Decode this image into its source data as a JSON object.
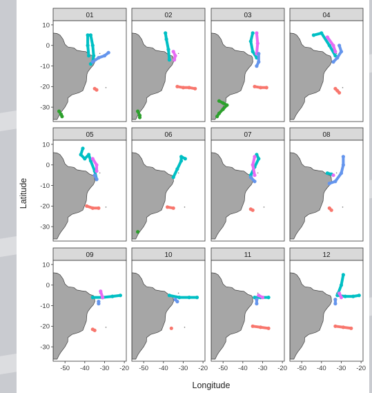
{
  "chart_data": {
    "type": "scatter",
    "facets": [
      "01",
      "02",
      "03",
      "04",
      "05",
      "06",
      "07",
      "08",
      "09",
      "10",
      "11",
      "12"
    ],
    "xlabel": "Longitude",
    "ylabel": "Latitude",
    "xlim": [
      -56,
      -19
    ],
    "ylim": [
      -37,
      12
    ],
    "x_ticks": [
      -50,
      -40,
      -30,
      -20
    ],
    "y_ticks": [
      10,
      0,
      -10,
      -20,
      -30
    ],
    "x_tick_labels": [
      "-50",
      "-40",
      "-30",
      "-20"
    ],
    "y_tick_labels": [
      "10",
      "0",
      "-10",
      "-20",
      "-30"
    ],
    "grid": false,
    "legend": "none",
    "colors": {
      "red": "#f8766d",
      "green": "#2ca02c",
      "cyan": "#00bfc4",
      "blue": "#6495ed",
      "magenta": "#e76bf3",
      "land": "#a6a6a6",
      "strip": "#d9d9d9"
    },
    "panels": [
      {
        "month": "01",
        "tracks": [
          {
            "color": "red",
            "points": [
              [
                -35,
                -21
              ],
              [
                -34,
                -21.6
              ]
            ]
          },
          {
            "color": "green",
            "points": [
              [
                -53,
                -32
              ],
              [
                -52,
                -33.5
              ],
              [
                -51.5,
                -34.5
              ]
            ]
          },
          {
            "color": "cyan",
            "points": [
              [
                -38,
                -5
              ],
              [
                -38.5,
                0
              ],
              [
                -38.5,
                5
              ],
              [
                -37,
                5
              ],
              [
                -36,
                0
              ],
              [
                -35.5,
                -5
              ],
              [
                -36,
                -8
              ],
              [
                -37,
                -9
              ]
            ]
          },
          {
            "color": "blue",
            "points": [
              [
                -36,
                -8
              ],
              [
                -33,
                -6
              ],
              [
                -30,
                -5
              ],
              [
                -28,
                -3.5
              ]
            ]
          }
        ]
      },
      {
        "month": "02",
        "tracks": [
          {
            "color": "red",
            "points": [
              [
                -33,
                -20
              ],
              [
                -30,
                -20.5
              ],
              [
                -27,
                -20.5
              ],
              [
                -24,
                -21
              ]
            ]
          },
          {
            "color": "green",
            "points": [
              [
                -53,
                -32
              ],
              [
                -52,
                -34
              ],
              [
                -52,
                -35
              ]
            ]
          },
          {
            "color": "cyan",
            "points": [
              [
                -39,
                6
              ],
              [
                -38.5,
                3
              ],
              [
                -37.5,
                -2
              ],
              [
                -37,
                -7
              ]
            ]
          },
          {
            "color": "magenta",
            "points": [
              [
                -35,
                -3
              ],
              [
                -34,
                -5
              ],
              [
                -34.5,
                -7
              ]
            ]
          }
        ]
      },
      {
        "month": "03",
        "tracks": [
          {
            "color": "red",
            "points": [
              [
                -34,
                -20
              ],
              [
                -31,
                -20.5
              ],
              [
                -28,
                -20.5
              ]
            ]
          },
          {
            "color": "green",
            "points": [
              [
                -52,
                -27
              ],
              [
                -50,
                -28
              ],
              [
                -48,
                -29
              ],
              [
                -50,
                -31
              ],
              [
                -52,
                -33
              ],
              [
                -53,
                -34.5
              ]
            ]
          },
          {
            "color": "cyan",
            "points": [
              [
                -35,
                6
              ],
              [
                -36,
                2
              ],
              [
                -35,
                -3
              ],
              [
                -33,
                -6
              ]
            ]
          },
          {
            "color": "magenta",
            "points": [
              [
                -33,
                6
              ],
              [
                -32.5,
                1
              ],
              [
                -33,
                -4
              ]
            ]
          },
          {
            "color": "blue",
            "points": [
              [
                -32,
                -4
              ],
              [
                -32,
                -8
              ],
              [
                -33,
                -10
              ]
            ]
          }
        ]
      },
      {
        "month": "04",
        "tracks": [
          {
            "color": "red",
            "points": [
              [
                -33,
                -21
              ],
              [
                -32,
                -22
              ],
              [
                -31,
                -23
              ]
            ]
          },
          {
            "color": "cyan",
            "points": [
              [
                -44,
                5
              ],
              [
                -40,
                6
              ],
              [
                -36,
                0
              ],
              [
                -33,
                -5
              ]
            ]
          },
          {
            "color": "magenta",
            "points": [
              [
                -37,
                4
              ],
              [
                -34,
                0
              ],
              [
                -33,
                -3
              ]
            ]
          },
          {
            "color": "blue",
            "points": [
              [
                -31,
                0
              ],
              [
                -30,
                -3
              ],
              [
                -32,
                -6
              ],
              [
                -34,
                -8
              ]
            ]
          }
        ]
      },
      {
        "month": "05",
        "tracks": [
          {
            "color": "red",
            "points": [
              [
                -39,
                -20
              ],
              [
                -36,
                -21
              ],
              [
                -33,
                -21
              ]
            ]
          },
          {
            "color": "cyan",
            "points": [
              [
                -41,
                8
              ],
              [
                -42,
                5
              ],
              [
                -40,
                3
              ],
              [
                -38,
                5
              ],
              [
                -37,
                2
              ],
              [
                -35,
                -3
              ],
              [
                -34,
                -7
              ]
            ]
          },
          {
            "color": "magenta",
            "points": [
              [
                -36,
                3
              ],
              [
                -34,
                0
              ],
              [
                -34,
                -3
              ]
            ]
          },
          {
            "color": "blue",
            "points": [
              [
                -35,
                -5
              ],
              [
                -34,
                -7
              ]
            ]
          }
        ]
      },
      {
        "month": "06",
        "tracks": [
          {
            "color": "red",
            "points": [
              [
                -38,
                -20.5
              ],
              [
                -35,
                -21
              ]
            ]
          },
          {
            "color": "green",
            "points": [
              [
                -53,
                -32.5
              ]
            ]
          },
          {
            "color": "cyan",
            "points": [
              [
                -35,
                -6
              ],
              [
                -33,
                -2
              ],
              [
                -31,
                2
              ],
              [
                -31,
                4
              ],
              [
                -29,
                3
              ]
            ]
          }
        ]
      },
      {
        "month": "07",
        "tracks": [
          {
            "color": "red",
            "points": [
              [
                -36,
                -21.5
              ],
              [
                -35,
                -22
              ]
            ]
          },
          {
            "color": "cyan",
            "points": [
              [
                -36,
                -5
              ],
              [
                -34,
                -1
              ],
              [
                -32,
                3
              ],
              [
                -33,
                5
              ]
            ]
          },
          {
            "color": "magenta",
            "points": [
              [
                -34,
                4
              ],
              [
                -35,
                0
              ],
              [
                -34,
                -5
              ]
            ]
          },
          {
            "color": "blue",
            "points": [
              [
                -36,
                -6
              ],
              [
                -34,
                -8
              ]
            ]
          }
        ]
      },
      {
        "month": "08",
        "tracks": [
          {
            "color": "red",
            "points": [
              [
                -36,
                -21
              ],
              [
                -35,
                -22
              ]
            ]
          },
          {
            "color": "cyan",
            "points": [
              [
                -37,
                -4
              ],
              [
                -35,
                -4.5
              ]
            ]
          },
          {
            "color": "magenta",
            "points": [
              [
                -34,
                -5
              ]
            ]
          },
          {
            "color": "blue",
            "points": [
              [
                -29,
                4
              ],
              [
                -29,
                0
              ],
              [
                -30,
                -4
              ],
              [
                -33,
                -8
              ],
              [
                -36,
                -9
              ]
            ]
          }
        ]
      },
      {
        "month": "09",
        "tracks": [
          {
            "color": "red",
            "points": [
              [
                -36,
                -21.5
              ],
              [
                -35,
                -22
              ]
            ]
          },
          {
            "color": "cyan",
            "points": [
              [
                -36,
                -6
              ],
              [
                -31,
                -6
              ],
              [
                -26,
                -5.5
              ],
              [
                -22,
                -5
              ]
            ]
          },
          {
            "color": "magenta",
            "points": [
              [
                -32,
                -3
              ],
              [
                -31,
                -6
              ]
            ]
          },
          {
            "color": "blue",
            "points": [
              [
                -33,
                -8
              ],
              [
                -33,
                -9
              ]
            ]
          }
        ]
      },
      {
        "month": "10",
        "tracks": [
          {
            "color": "red",
            "points": [
              [
                -36,
                -21
              ]
            ]
          },
          {
            "color": "cyan",
            "points": [
              [
                -37,
                -5
              ],
              [
                -32,
                -6
              ],
              [
                -27,
                -6
              ],
              [
                -23,
                -6
              ]
            ]
          },
          {
            "color": "blue",
            "points": [
              [
                -34,
                -7
              ],
              [
                -33,
                -8
              ]
            ]
          }
        ]
      },
      {
        "month": "11",
        "tracks": [
          {
            "color": "red",
            "points": [
              [
                -35,
                -20
              ],
              [
                -31,
                -20.5
              ],
              [
                -27,
                -21
              ]
            ]
          },
          {
            "color": "cyan",
            "points": [
              [
                -34,
                -6
              ],
              [
                -31,
                -6
              ],
              [
                -27,
                -6
              ]
            ]
          },
          {
            "color": "magenta",
            "points": [
              [
                -32,
                -5
              ],
              [
                -30,
                -6
              ]
            ]
          },
          {
            "color": "blue",
            "points": [
              [
                -33,
                -7
              ],
              [
                -33,
                -9
              ]
            ]
          }
        ]
      },
      {
        "month": "12",
        "tracks": [
          {
            "color": "red",
            "points": [
              [
                -33,
                -20
              ],
              [
                -29,
                -20.5
              ],
              [
                -25,
                -21
              ]
            ]
          },
          {
            "color": "cyan",
            "points": [
              [
                -29,
                5
              ],
              [
                -30,
                0
              ],
              [
                -32,
                -5
              ],
              [
                -28,
                -5.5
              ],
              [
                -24,
                -5.5
              ],
              [
                -21,
                -5
              ]
            ]
          },
          {
            "color": "magenta",
            "points": [
              [
                -31,
                -4
              ],
              [
                -30,
                -6
              ]
            ]
          },
          {
            "color": "blue",
            "points": [
              [
                -33,
                -7
              ],
              [
                -33,
                -9
              ]
            ]
          }
        ]
      }
    ]
  }
}
